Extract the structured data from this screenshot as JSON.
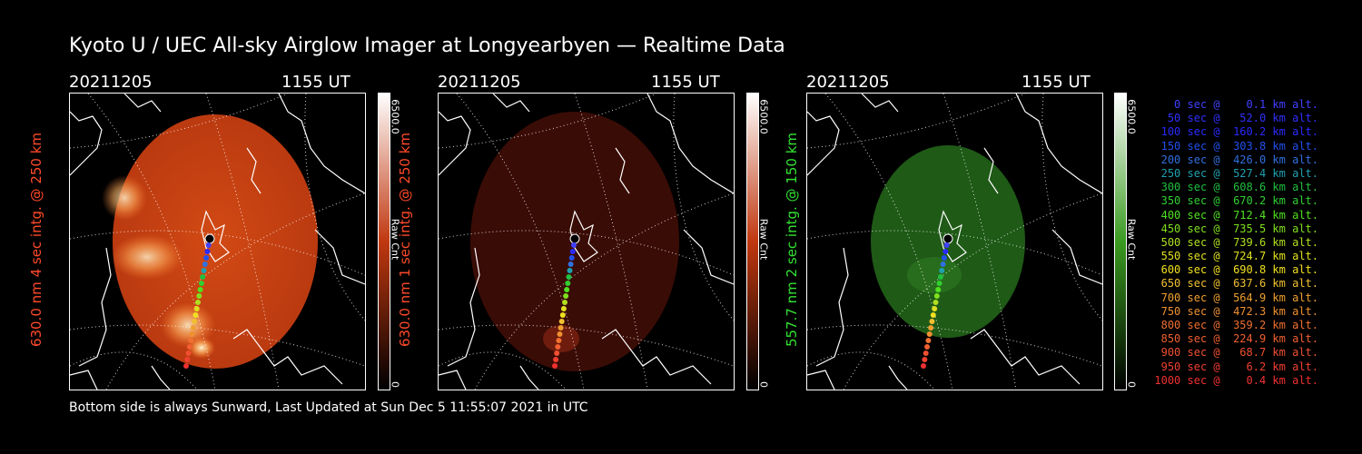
{
  "title": "Kyoto U / UEC All-sky Airglow Imager at Longyearbyen — Realtime Data",
  "footer": "Bottom side is always Sunward, Last Updated at Sun Dec  5 11:55:07 2021 in UTC",
  "panels": [
    {
      "date": "20211205",
      "time": "1155 UT",
      "ylabel": "630.0 nm 4 sec intg. @ 250 km",
      "label_color": "#ff4a2a",
      "cb_max": "6500.0",
      "cb_min": "0",
      "cb_unit": "Raw Cnt"
    },
    {
      "date": "20211205",
      "time": "1155 UT",
      "ylabel": "630.0 nm 1 sec intg. @ 250 km",
      "label_color": "#ff4a2a",
      "cb_max": "6500.0",
      "cb_min": "0",
      "cb_unit": "Raw Cnt"
    },
    {
      "date": "20211205",
      "time": "1155 UT",
      "ylabel": "557.7 nm 2 sec intg. @ 150 km",
      "label_color": "#33e233",
      "cb_max": "6500.0",
      "cb_min": "0",
      "cb_unit": "Raw Cnt"
    }
  ],
  "legend": [
    {
      "text": "   0 sec @    0.1 km alt.",
      "color": "#4040ff"
    },
    {
      "text": "  50 sec @   52.0 km alt.",
      "color": "#3030ff"
    },
    {
      "text": " 100 sec @  160.2 km alt.",
      "color": "#2a2aff"
    },
    {
      "text": " 150 sec @  303.8 km alt.",
      "color": "#2050f0"
    },
    {
      "text": " 200 sec @  426.0 km alt.",
      "color": "#3070e0"
    },
    {
      "text": " 250 sec @  527.4 km alt.",
      "color": "#20a0b0"
    },
    {
      "text": " 300 sec @  608.6 km alt.",
      "color": "#20c040"
    },
    {
      "text": " 350 sec @  670.2 km alt.",
      "color": "#30d030"
    },
    {
      "text": " 400 sec @  712.4 km alt.",
      "color": "#50e020"
    },
    {
      "text": " 450 sec @  735.5 km alt.",
      "color": "#80e020"
    },
    {
      "text": " 500 sec @  739.6 km alt.",
      "color": "#b0e020"
    },
    {
      "text": " 550 sec @  724.7 km alt.",
      "color": "#e0e020"
    },
    {
      "text": " 600 sec @  690.8 km alt.",
      "color": "#f0e020"
    },
    {
      "text": " 650 sec @  637.6 km alt.",
      "color": "#f0c030"
    },
    {
      "text": " 700 sec @  564.9 km alt.",
      "color": "#f0a030"
    },
    {
      "text": " 750 sec @  472.3 km alt.",
      "color": "#f09030"
    },
    {
      "text": " 800 sec @  359.2 km alt.",
      "color": "#f07030"
    },
    {
      "text": " 850 sec @  224.9 km alt.",
      "color": "#f06030"
    },
    {
      "text": " 900 sec @   68.7 km alt.",
      "color": "#f05030"
    },
    {
      "text": " 950 sec @    6.2 km alt.",
      "color": "#f04030"
    },
    {
      "text": "1000 sec @    0.4 km alt.",
      "color": "#f03030"
    }
  ]
}
